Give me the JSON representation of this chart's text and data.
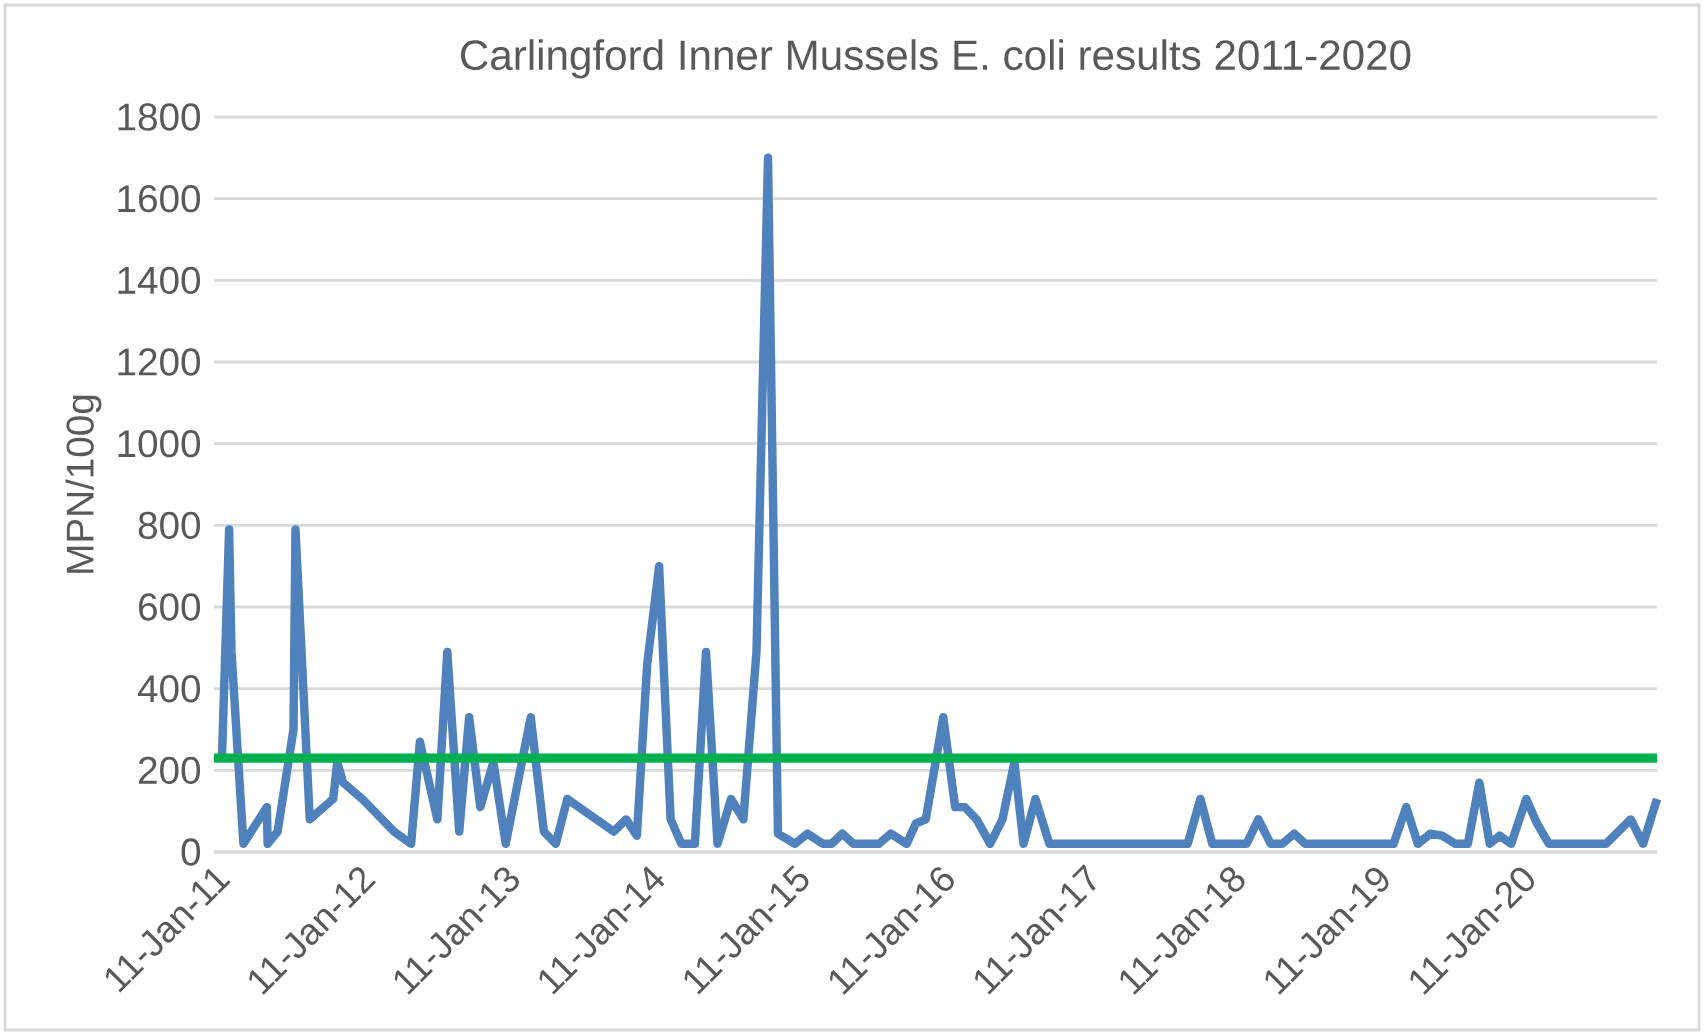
{
  "chart_data": {
    "type": "line",
    "title": "Carlingford Inner Mussels E. coli results 2011-2020",
    "ylabel": "MPN/100g",
    "x": [
      "2011-01-31",
      "2011-02-18",
      "2011-02-24",
      "2011-03-26",
      "2011-05-24",
      "2011-05-26",
      "2011-06-20",
      "2011-07-30",
      "2011-08-04",
      "2011-09-09",
      "2011-11-07",
      "2011-11-17",
      "2011-12-02",
      "2012-01-19",
      "2012-04-08",
      "2012-05-21",
      "2012-06-12",
      "2012-07-26",
      "2012-08-20",
      "2012-09-19",
      "2012-10-14",
      "2012-11-11",
      "2012-12-14",
      "2013-01-14",
      "2013-03-18",
      "2013-04-20",
      "2013-05-20",
      "2013-06-18",
      "2013-10-13",
      "2013-11-13",
      "2013-12-10",
      "2014-01-05",
      "2014-02-04",
      "2014-03-05",
      "2014-04-01",
      "2014-05-05",
      "2014-06-02",
      "2014-07-01",
      "2014-08-04",
      "2014-09-04",
      "2014-10-07",
      "2014-11-05",
      "2014-11-30",
      "2015-01-12",
      "2015-02-12",
      "2015-03-23",
      "2015-04-14",
      "2015-05-11",
      "2015-06-08",
      "2015-08-11",
      "2015-09-10",
      "2015-10-20",
      "2015-11-12",
      "2015-12-07",
      "2016-01-20",
      "2016-02-19",
      "2016-03-14",
      "2016-04-13",
      "2016-05-17",
      "2016-06-17",
      "2016-07-17",
      "2016-08-09",
      "2016-09-08",
      "2016-10-13",
      "2017-09-26",
      "2017-10-28",
      "2017-11-27",
      "2018-02-21",
      "2018-03-23",
      "2018-04-23",
      "2018-05-22",
      "2018-06-21",
      "2018-07-19",
      "2019-02-26",
      "2019-03-30",
      "2019-04-28",
      "2019-05-30",
      "2019-06-28",
      "2019-08-01",
      "2019-09-01",
      "2019-09-30",
      "2019-10-26",
      "2019-11-20",
      "2019-12-19",
      "2020-01-26",
      "2020-02-22",
      "2020-03-23",
      "2020-08-14",
      "2020-10-15",
      "2020-11-15",
      "2020-12-20"
    ],
    "series": [
      {
        "color": "#4f81bd",
        "values": [
          230,
          790,
          490,
          20,
          110,
          20,
          50,
          300,
          790,
          80,
          130,
          220,
          170,
          130,
          50,
          20,
          270,
          80,
          490,
          50,
          330,
          110,
          220,
          20,
          330,
          50,
          20,
          130,
          50,
          80,
          40,
          460,
          700,
          80,
          20,
          20,
          490,
          20,
          130,
          80,
          490,
          1700,
          45,
          20,
          45,
          20,
          20,
          45,
          20,
          20,
          45,
          20,
          70,
          80,
          330,
          110,
          110,
          80,
          20,
          80,
          220,
          20,
          130,
          20,
          20,
          130,
          20,
          20,
          80,
          20,
          20,
          45,
          20,
          20,
          110,
          20,
          45,
          40,
          20,
          20,
          170,
          20,
          40,
          20,
          130,
          70,
          20,
          20,
          80,
          20,
          130
        ]
      }
    ],
    "xlim": [
      "2011-01-11",
      "2020-12-20"
    ],
    "xticks": [
      {
        "value": "2011-01-11",
        "label": "11-Jan-11"
      },
      {
        "value": "2012-01-11",
        "label": "11-Jan-12"
      },
      {
        "value": "2013-01-11",
        "label": "11-Jan-13"
      },
      {
        "value": "2014-01-11",
        "label": "11-Jan-14"
      },
      {
        "value": "2015-01-11",
        "label": "11-Jan-15"
      },
      {
        "value": "2016-01-11",
        "label": "11-Jan-16"
      },
      {
        "value": "2017-01-11",
        "label": "11-Jan-17"
      },
      {
        "value": "2018-01-11",
        "label": "11-Jan-18"
      },
      {
        "value": "2019-01-11",
        "label": "11-Jan-19"
      },
      {
        "value": "2020-01-11",
        "label": "11-Jan-20"
      }
    ],
    "ylim": [
      0,
      1800
    ],
    "yticks": [
      0,
      200,
      400,
      600,
      800,
      1000,
      1200,
      1400,
      1600,
      1800
    ],
    "ref_lines": [
      {
        "axis": "y",
        "value": 230,
        "color": "#00b050"
      }
    ],
    "grid": "y",
    "marker": "none",
    "line_style": "solid"
  }
}
